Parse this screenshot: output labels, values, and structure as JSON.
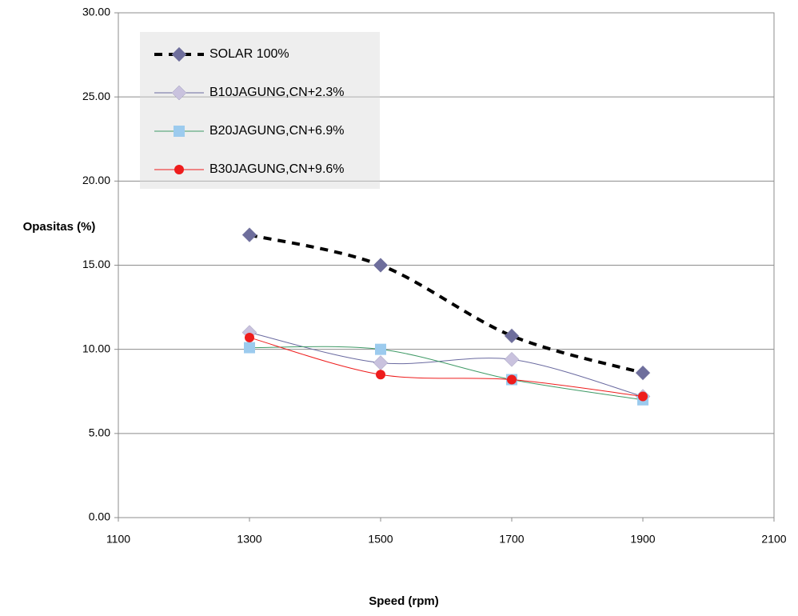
{
  "chart_data": {
    "type": "line",
    "x_label": "Speed (rpm)",
    "y_label": "Opasitas (%)",
    "x": [
      1300,
      1500,
      1700,
      1900
    ],
    "xlim": [
      1100,
      2100
    ],
    "xticks": [
      1100,
      1300,
      1500,
      1700,
      1900,
      2100
    ],
    "ylim": [
      0,
      30
    ],
    "yticks": [
      {
        "value": 0,
        "label": "0.00"
      },
      {
        "value": 5,
        "label": "5.00"
      },
      {
        "value": 10,
        "label": "10.00"
      },
      {
        "value": 15,
        "label": "15.00"
      },
      {
        "value": 20,
        "label": "20.00"
      },
      {
        "value": 25,
        "label": "25.00"
      },
      {
        "value": 30,
        "label": "30.00"
      }
    ],
    "grid": true,
    "legend": "upper-left",
    "series": [
      {
        "name": "SOLAR 100%",
        "color": "#000000",
        "marker_color": "#6e6e9c",
        "marker": "diamond",
        "dashed": true,
        "values": [
          16.8,
          15.0,
          10.8,
          8.6
        ]
      },
      {
        "name": "B10JAGUNG,CN+2.3%",
        "color": "#6a6aa0",
        "marker_color": "#c9c2de",
        "marker": "diamond",
        "dashed": false,
        "values": [
          11.0,
          9.2,
          9.4,
          7.2
        ]
      },
      {
        "name": "B20JAGUNG,CN+6.9%",
        "color": "#3f9a66",
        "marker_color": "#9ccbee",
        "marker": "square",
        "dashed": false,
        "values": [
          10.1,
          10.0,
          8.2,
          7.0
        ]
      },
      {
        "name": "B30JAGUNG,CN+9.6%",
        "color": "#ee1c1c",
        "marker_color": "#ee1c1c",
        "marker": "circle",
        "dashed": false,
        "values": [
          10.7,
          8.5,
          8.2,
          7.2
        ]
      }
    ]
  }
}
